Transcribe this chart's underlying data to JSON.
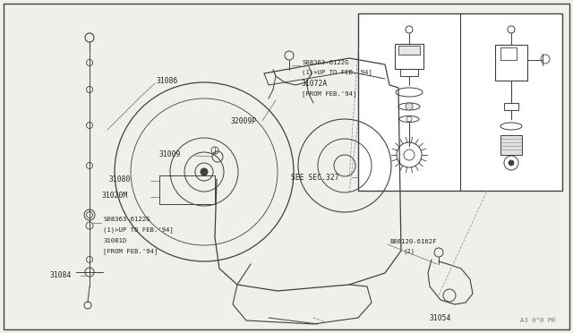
{
  "bg_color": "#f0f0eb",
  "line_color": "#404040",
  "text_color": "#222222",
  "border_color": "#888888",
  "fig_w": 6.4,
  "fig_h": 3.72,
  "dpi": 100,
  "part_number": "A3 0^0 PR",
  "labels_s08363_top": [
    "S08363-6122G",
    "(1)>UP TO FEB.'94]",
    "31072A",
    "[FROM FEB.'94]"
  ],
  "labels_s08363_bot": [
    "S08363-6122G",
    "(1)>UP TO FEB.'94]",
    "31081D",
    "[FROM FEB.'94]"
  ],
  "label_b08120": [
    "B08120-6162F",
    "(2)"
  ],
  "see_sec": "SEE SEC.327"
}
